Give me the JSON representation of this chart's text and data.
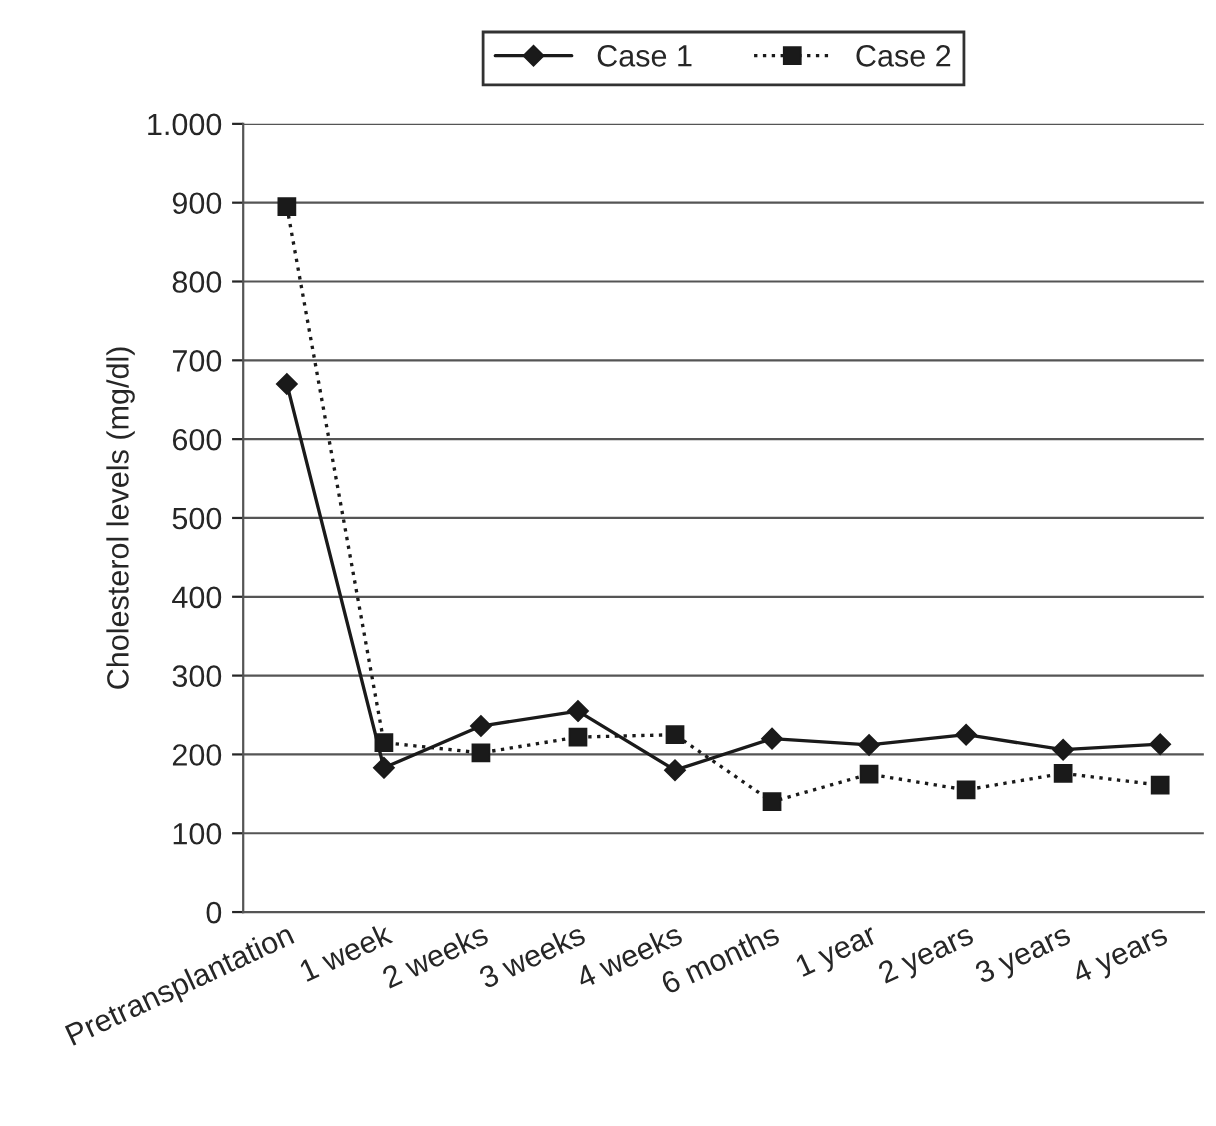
{
  "chart_data": {
    "type": "line",
    "ylabel": "Cholesterol levels (mg/dl)",
    "categories": [
      "Pretransplantation",
      "1 week",
      "2 weeks",
      "3 weeks",
      "4 weeks",
      "6 months",
      "1 year",
      "2 years",
      "3 years",
      "4 years"
    ],
    "series": [
      {
        "name": "Case 1",
        "color": "#1a1a1a",
        "marker": "diamond",
        "line_style": "solid",
        "values": [
          670,
          183,
          236,
          255,
          180,
          220,
          212,
          225,
          206,
          213
        ]
      },
      {
        "name": "Case 2",
        "color": "#1a1a1a",
        "marker": "square",
        "line_style": "dotted",
        "values": [
          895,
          215,
          202,
          222,
          225,
          140,
          175,
          155,
          176,
          161
        ]
      }
    ],
    "ylim": [
      0,
      1000
    ],
    "yticks": [
      0,
      100,
      200,
      300,
      400,
      500,
      600,
      700,
      800,
      900,
      {
        "value": 1000,
        "label": "1.000"
      }
    ],
    "grid": "y",
    "legend": "top"
  }
}
